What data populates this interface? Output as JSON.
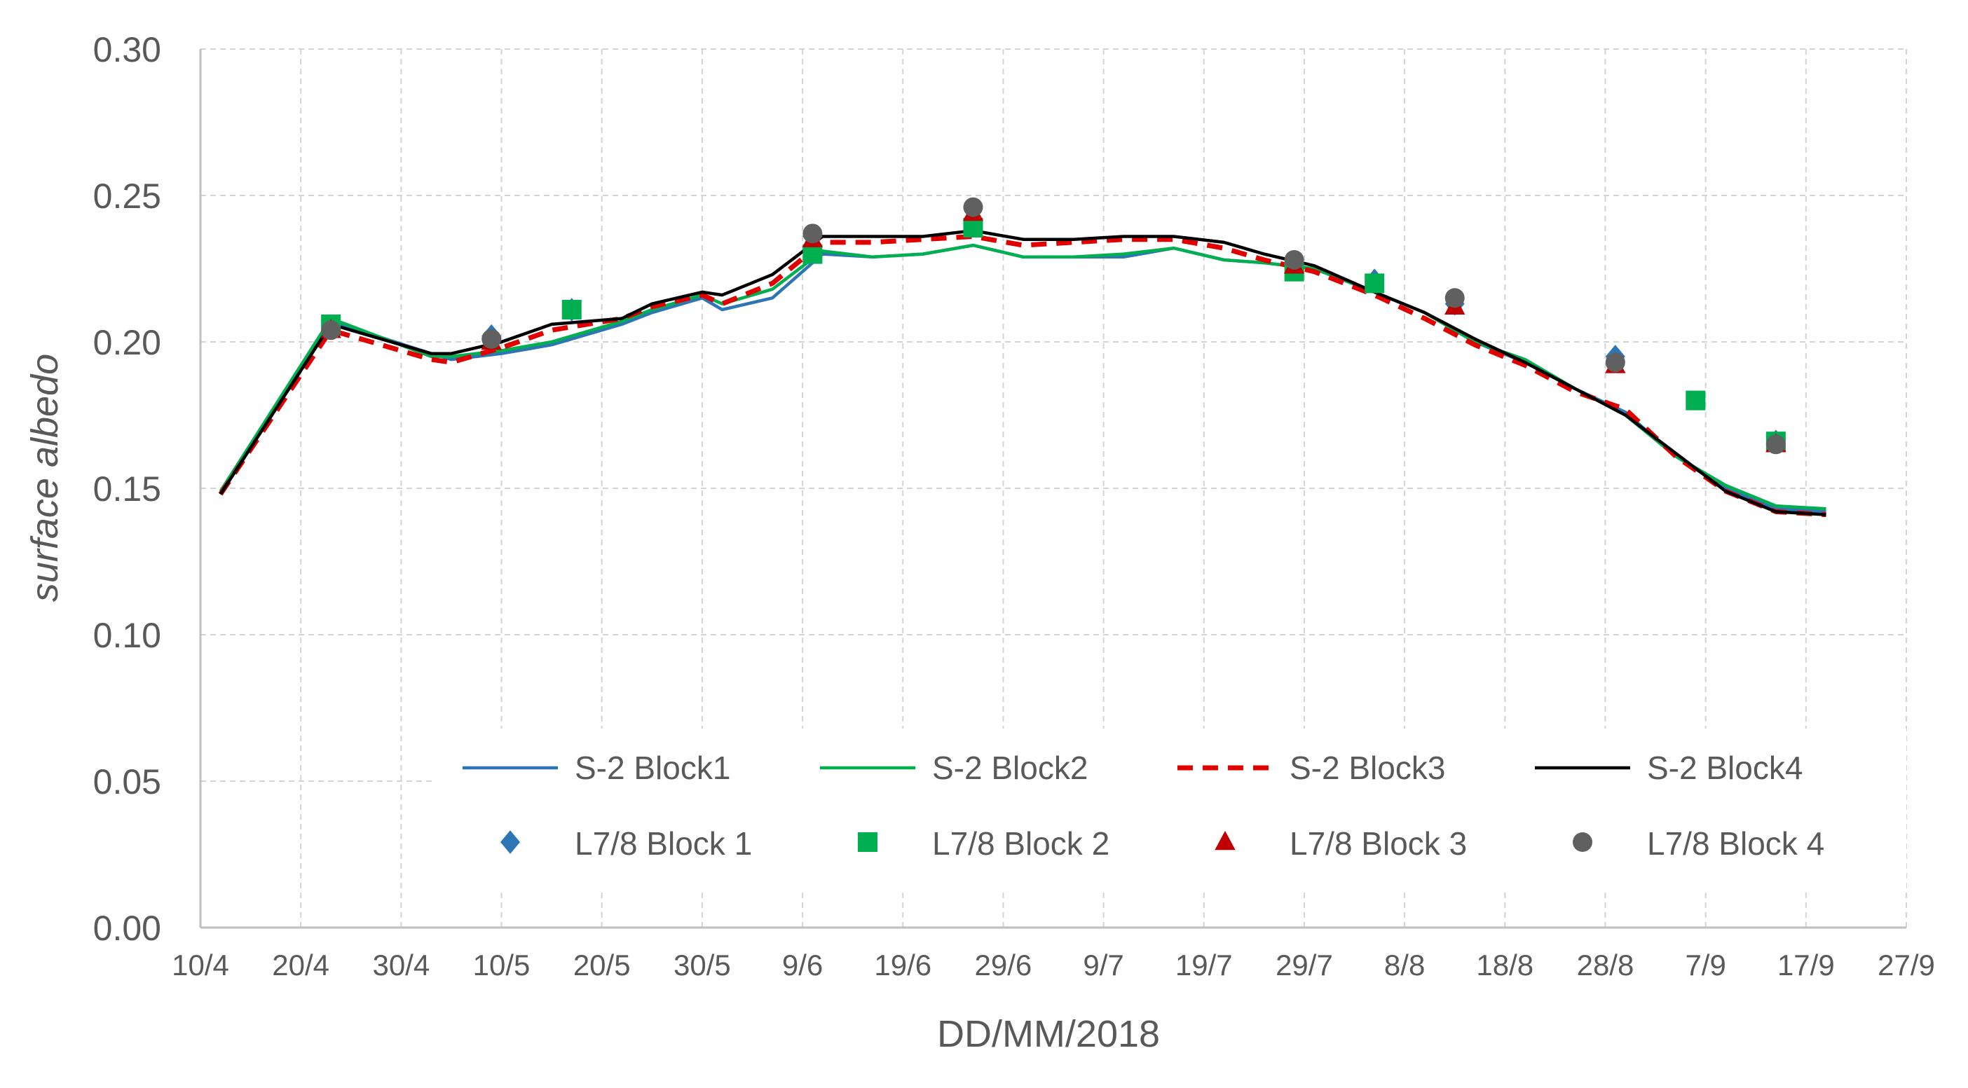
{
  "chart_data": {
    "type": "line",
    "title": "",
    "xlabel": "DD/MM/2018",
    "ylabel": "surface albedo",
    "ylim": [
      0,
      0.3
    ],
    "yticks": [
      0,
      0.05,
      0.1,
      0.15,
      0.2,
      0.25,
      0.3
    ],
    "ytick_labels": [
      "0.00",
      "0.05",
      "0.10",
      "0.15",
      "0.20",
      "0.25",
      "0.30"
    ],
    "xlim_day_of_year": [
      100,
      270
    ],
    "xticks_day_of_year": [
      100,
      110,
      120,
      130,
      140,
      150,
      160,
      170,
      180,
      190,
      200,
      210,
      220,
      230,
      240,
      250,
      260,
      270
    ],
    "xtick_labels": [
      "10/4",
      "20/4",
      "30/4",
      "10/5",
      "20/5",
      "30/5",
      "9/6",
      "19/6",
      "29/6",
      "9/7",
      "19/7",
      "29/7",
      "8/8",
      "18/8",
      "28/8",
      "7/9",
      "17/9",
      "27/9"
    ],
    "grid": true,
    "legend_position": "bottom-center",
    "line_series": [
      {
        "name": "S-2 Block1",
        "color": "#2e75b6",
        "dash": "solid",
        "x": [
          102,
          113,
          123,
          125,
          130,
          135,
          142,
          145,
          150,
          152,
          157,
          162,
          167,
          172,
          177,
          182,
          187,
          192,
          197,
          202,
          206,
          211,
          217,
          222,
          227,
          232,
          237,
          242,
          247,
          252,
          257,
          262
        ],
        "y": [
          0.148,
          0.207,
          0.196,
          0.194,
          0.196,
          0.199,
          0.206,
          0.21,
          0.215,
          0.211,
          0.215,
          0.23,
          0.229,
          0.23,
          0.233,
          0.229,
          0.229,
          0.229,
          0.232,
          0.228,
          0.227,
          0.225,
          0.217,
          0.21,
          0.2,
          0.193,
          0.184,
          0.176,
          0.161,
          0.15,
          0.143,
          0.142
        ]
      },
      {
        "name": "S-2 Block2",
        "color": "#00b050",
        "dash": "solid",
        "x": [
          102,
          113,
          123,
          125,
          130,
          135,
          142,
          145,
          150,
          152,
          157,
          162,
          167,
          172,
          177,
          182,
          187,
          192,
          197,
          202,
          206,
          211,
          217,
          222,
          227,
          232,
          237,
          242,
          247,
          252,
          257,
          262
        ],
        "y": [
          0.149,
          0.208,
          0.195,
          0.195,
          0.197,
          0.2,
          0.207,
          0.211,
          0.216,
          0.213,
          0.218,
          0.231,
          0.229,
          0.23,
          0.233,
          0.229,
          0.229,
          0.23,
          0.232,
          0.228,
          0.227,
          0.225,
          0.217,
          0.21,
          0.2,
          0.194,
          0.184,
          0.175,
          0.161,
          0.151,
          0.144,
          0.143
        ]
      },
      {
        "name": "S-2 Block3",
        "color": "#e00000",
        "dash": "dashed",
        "x": [
          102,
          113,
          123,
          125,
          130,
          135,
          142,
          145,
          150,
          152,
          157,
          162,
          167,
          172,
          177,
          182,
          187,
          192,
          197,
          202,
          206,
          211,
          217,
          222,
          227,
          232,
          237,
          242,
          247,
          252,
          257,
          262
        ],
        "y": [
          0.148,
          0.204,
          0.194,
          0.193,
          0.198,
          0.204,
          0.208,
          0.212,
          0.216,
          0.213,
          0.22,
          0.234,
          0.234,
          0.235,
          0.236,
          0.233,
          0.234,
          0.235,
          0.235,
          0.232,
          0.228,
          0.224,
          0.216,
          0.208,
          0.199,
          0.192,
          0.183,
          0.177,
          0.161,
          0.149,
          0.142,
          0.141
        ]
      },
      {
        "name": "S-2 Block4",
        "color": "#000000",
        "dash": "solid",
        "x": [
          102,
          113,
          123,
          125,
          130,
          135,
          142,
          145,
          150,
          152,
          157,
          162,
          167,
          172,
          177,
          182,
          187,
          192,
          197,
          202,
          206,
          211,
          217,
          222,
          227,
          232,
          237,
          242,
          247,
          252,
          257,
          262
        ],
        "y": [
          0.148,
          0.206,
          0.196,
          0.196,
          0.2,
          0.206,
          0.208,
          0.213,
          0.217,
          0.216,
          0.223,
          0.236,
          0.236,
          0.236,
          0.238,
          0.235,
          0.235,
          0.236,
          0.236,
          0.234,
          0.23,
          0.226,
          0.217,
          0.21,
          0.201,
          0.193,
          0.184,
          0.175,
          0.162,
          0.149,
          0.142,
          0.141
        ]
      }
    ],
    "scatter_series": [
      {
        "name": "L7/8 Block 1",
        "color": "#2e75b6",
        "marker": "diamond",
        "x": [
          113,
          129,
          137,
          161,
          177,
          209,
          217,
          225,
          241,
          257
        ],
        "y": [
          0.205,
          0.202,
          0.211,
          0.236,
          0.242,
          0.227,
          0.221,
          0.213,
          0.195,
          0.166
        ]
      },
      {
        "name": "L7/8 Block 2",
        "color": "#00b050",
        "marker": "square",
        "x": [
          113,
          137,
          161,
          177,
          209,
          217,
          249,
          257
        ],
        "y": [
          0.206,
          0.211,
          0.23,
          0.239,
          0.224,
          0.22,
          0.18,
          0.166
        ]
      },
      {
        "name": "L7/8 Block 3",
        "color": "#c00000",
        "marker": "triangle",
        "x": [
          113,
          129,
          161,
          177,
          209,
          225,
          241,
          257
        ],
        "y": [
          0.204,
          0.2,
          0.235,
          0.244,
          0.226,
          0.212,
          0.192,
          0.165
        ]
      },
      {
        "name": "L7/8 Block 4",
        "color": "#606060",
        "marker": "circle",
        "x": [
          113,
          129,
          161,
          177,
          209,
          225,
          241,
          257
        ],
        "y": [
          0.204,
          0.201,
          0.237,
          0.246,
          0.228,
          0.215,
          0.193,
          0.165
        ]
      }
    ]
  }
}
